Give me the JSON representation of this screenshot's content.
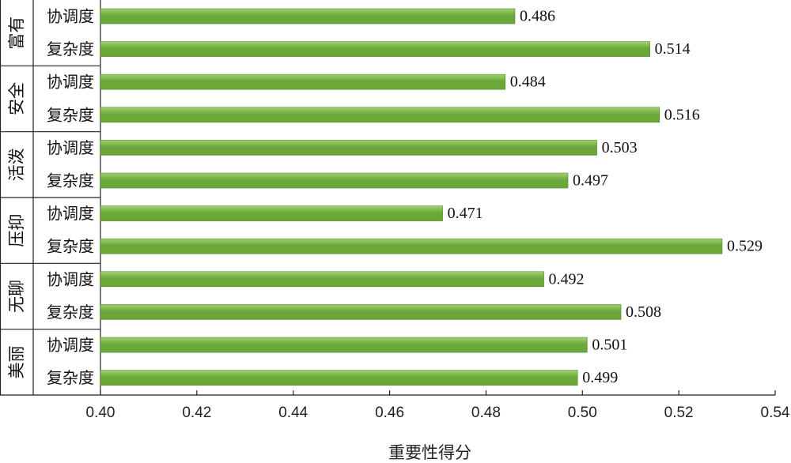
{
  "chart_data": {
    "type": "bar",
    "orientation": "horizontal",
    "title": "",
    "xlabel": "重要性得分",
    "ylabel": "",
    "xlim": [
      0.4,
      0.54
    ],
    "x_ticks": [
      "0.40",
      "0.42",
      "0.44",
      "0.46",
      "0.48",
      "0.50",
      "0.52",
      "0.54"
    ],
    "grid": false,
    "bar_color": "#6aa83a",
    "bar_highlight_color": "#a4d271",
    "groups": [
      {
        "name": "富有",
        "bars": [
          {
            "label": "协调度",
            "value": 0.486,
            "value_label": "0.486"
          },
          {
            "label": "复杂度",
            "value": 0.514,
            "value_label": "0.514"
          }
        ]
      },
      {
        "name": "安全",
        "bars": [
          {
            "label": "协调度",
            "value": 0.484,
            "value_label": "0.484"
          },
          {
            "label": "复杂度",
            "value": 0.516,
            "value_label": "0.516"
          }
        ]
      },
      {
        "name": "活泼",
        "bars": [
          {
            "label": "协调度",
            "value": 0.503,
            "value_label": "0.503"
          },
          {
            "label": "复杂度",
            "value": 0.497,
            "value_label": "0.497"
          }
        ]
      },
      {
        "name": "压抑",
        "bars": [
          {
            "label": "协调度",
            "value": 0.471,
            "value_label": "0.471"
          },
          {
            "label": "复杂度",
            "value": 0.529,
            "value_label": "0.529"
          }
        ]
      },
      {
        "name": "无聊",
        "bars": [
          {
            "label": "协调度",
            "value": 0.492,
            "value_label": "0.492"
          },
          {
            "label": "复杂度",
            "value": 0.508,
            "value_label": "0.508"
          }
        ]
      },
      {
        "name": "美丽",
        "bars": [
          {
            "label": "协调度",
            "value": 0.501,
            "value_label": "0.501"
          },
          {
            "label": "复杂度",
            "value": 0.499,
            "value_label": "0.499"
          }
        ]
      }
    ]
  }
}
